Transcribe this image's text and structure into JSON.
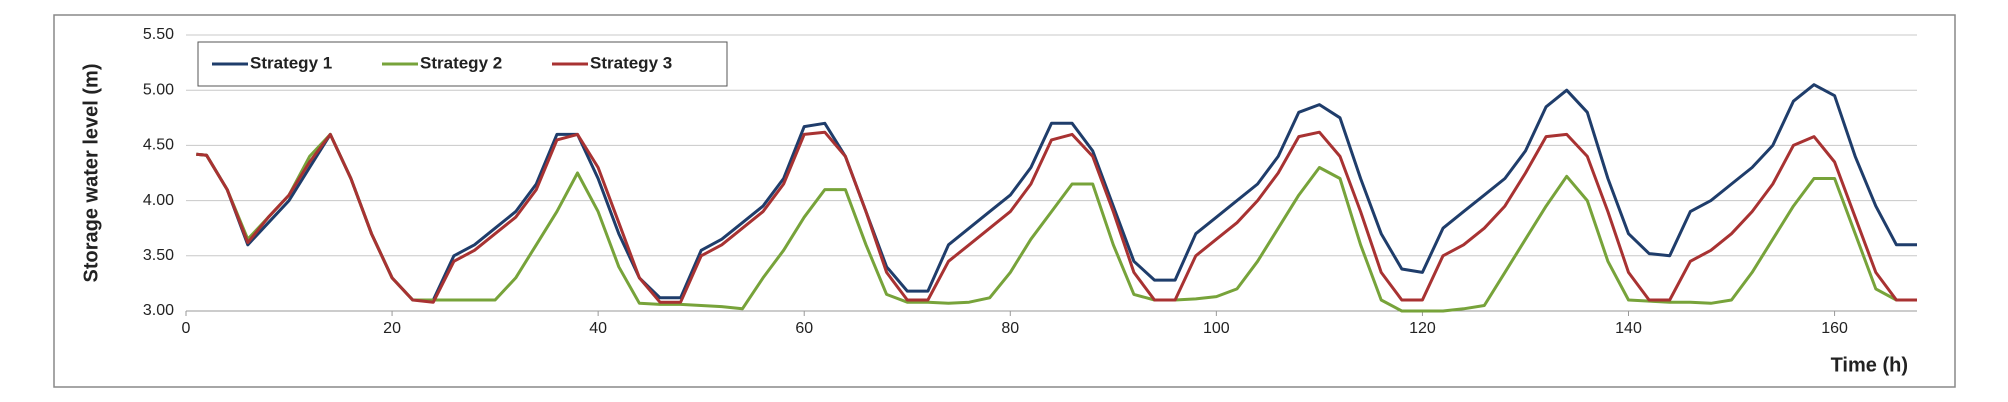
{
  "chart_data": {
    "type": "line",
    "x_label": "Time (h)",
    "y_label": "Storage water level (m)",
    "x": [
      1,
      2,
      4,
      6,
      8,
      10,
      12,
      14,
      16,
      18,
      20,
      22,
      24,
      26,
      28,
      30,
      32,
      34,
      36,
      38,
      40,
      42,
      44,
      46,
      48,
      50,
      52,
      54,
      56,
      58,
      60,
      62,
      64,
      66,
      68,
      70,
      72,
      74,
      76,
      78,
      80,
      82,
      84,
      86,
      88,
      90,
      92,
      94,
      96,
      98,
      100,
      102,
      104,
      106,
      108,
      110,
      112,
      114,
      116,
      118,
      120,
      122,
      124,
      126,
      128,
      130,
      132,
      134,
      136,
      138,
      140,
      142,
      144,
      146,
      148,
      150,
      152,
      154,
      156,
      158,
      160,
      162,
      164,
      166,
      168
    ],
    "series": [
      {
        "name": "Strategy 1",
        "color": "#1f3d6b",
        "values": [
          4.42,
          4.41,
          4.1,
          3.6,
          3.8,
          4.0,
          4.3,
          4.6,
          4.2,
          3.7,
          3.3,
          3.1,
          3.1,
          3.5,
          3.6,
          3.75,
          3.9,
          4.15,
          4.6,
          4.6,
          4.2,
          3.7,
          3.3,
          3.12,
          3.12,
          3.55,
          3.65,
          3.8,
          3.95,
          4.2,
          4.67,
          4.7,
          4.4,
          3.9,
          3.4,
          3.18,
          3.18,
          3.6,
          3.75,
          3.9,
          4.05,
          4.3,
          4.7,
          4.7,
          4.45,
          3.95,
          3.45,
          3.28,
          3.28,
          3.7,
          3.85,
          4.0,
          4.15,
          4.4,
          4.8,
          4.87,
          4.75,
          4.2,
          3.7,
          3.38,
          3.35,
          3.75,
          3.9,
          4.05,
          4.2,
          4.45,
          4.85,
          5.0,
          4.8,
          4.2,
          3.7,
          3.52,
          3.5,
          3.9,
          4.0,
          4.15,
          4.3,
          4.5,
          4.9,
          5.05,
          4.95,
          4.4,
          3.95,
          3.6,
          3.6
        ]
      },
      {
        "name": "Strategy 2",
        "color": "#77a33a",
        "values": [
          4.42,
          4.41,
          4.1,
          3.65,
          3.85,
          4.05,
          4.4,
          4.6,
          4.2,
          3.7,
          3.3,
          3.1,
          3.1,
          3.1,
          3.1,
          3.1,
          3.3,
          3.6,
          3.9,
          4.25,
          3.9,
          3.4,
          3.07,
          3.06,
          3.06,
          3.05,
          3.04,
          3.02,
          3.3,
          3.55,
          3.85,
          4.1,
          4.1,
          3.6,
          3.15,
          3.08,
          3.08,
          3.07,
          3.08,
          3.12,
          3.35,
          3.65,
          3.9,
          4.15,
          4.15,
          3.6,
          3.15,
          3.1,
          3.1,
          3.11,
          3.13,
          3.2,
          3.45,
          3.75,
          4.05,
          4.3,
          4.2,
          3.6,
          3.1,
          3.0,
          3.0,
          3.0,
          3.02,
          3.05,
          3.35,
          3.65,
          3.95,
          4.22,
          4.0,
          3.45,
          3.1,
          3.09,
          3.08,
          3.08,
          3.07,
          3.1,
          3.35,
          3.65,
          3.95,
          4.2,
          4.2,
          3.7,
          3.2,
          3.1,
          3.1
        ]
      },
      {
        "name": "Strategy 3",
        "color": "#a83232",
        "values": [
          4.42,
          4.41,
          4.1,
          3.62,
          3.85,
          4.05,
          4.35,
          4.6,
          4.2,
          3.7,
          3.3,
          3.1,
          3.08,
          3.45,
          3.55,
          3.7,
          3.85,
          4.1,
          4.55,
          4.6,
          4.3,
          3.8,
          3.3,
          3.08,
          3.08,
          3.5,
          3.6,
          3.75,
          3.9,
          4.15,
          4.6,
          4.62,
          4.4,
          3.9,
          3.35,
          3.1,
          3.1,
          3.45,
          3.6,
          3.75,
          3.9,
          4.15,
          4.55,
          4.6,
          4.4,
          3.9,
          3.35,
          3.1,
          3.1,
          3.5,
          3.65,
          3.8,
          4.0,
          4.25,
          4.58,
          4.62,
          4.4,
          3.9,
          3.35,
          3.1,
          3.1,
          3.5,
          3.6,
          3.75,
          3.95,
          4.25,
          4.58,
          4.6,
          4.4,
          3.9,
          3.35,
          3.1,
          3.1,
          3.45,
          3.55,
          3.7,
          3.9,
          4.15,
          4.5,
          4.58,
          4.35,
          3.85,
          3.35,
          3.1,
          3.1
        ]
      }
    ],
    "xlim": [
      0,
      168
    ],
    "ylim": [
      3,
      5.5
    ],
    "xticks": [
      0,
      20,
      40,
      60,
      80,
      100,
      120,
      140,
      160
    ],
    "yticks": [
      {
        "value": 3,
        "label": "3.00"
      },
      {
        "value": 3.5,
        "label": "3.50"
      },
      {
        "value": 4,
        "label": "4.00"
      },
      {
        "value": 4.5,
        "label": "4.50"
      },
      {
        "value": 5,
        "label": "5.00"
      },
      {
        "value": 5.5,
        "label": "5.50"
      }
    ],
    "grid": true,
    "legend": "upper left"
  }
}
